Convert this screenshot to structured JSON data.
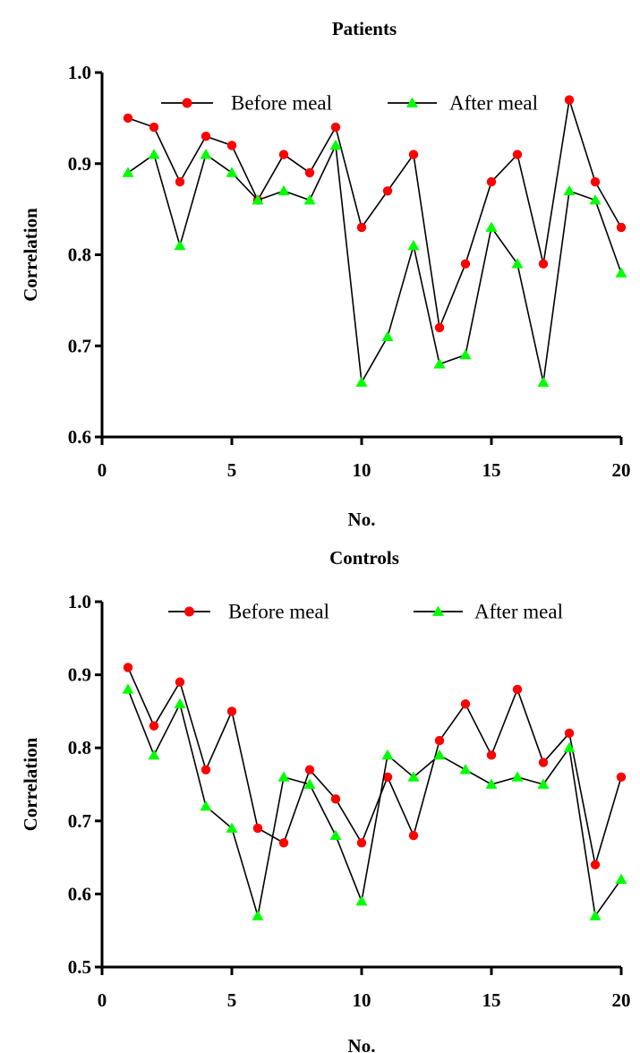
{
  "chart_data": [
    {
      "type": "line",
      "title": "Patients",
      "xlabel": "No.",
      "ylabel": "Correlation",
      "xlim": [
        0,
        20
      ],
      "ylim": [
        0.6,
        1.0
      ],
      "xticks": [
        0,
        5,
        10,
        15,
        20
      ],
      "yticks": [
        0.6,
        0.7,
        0.8,
        0.9,
        1.0
      ],
      "xtick_labels": [
        "0",
        "5",
        "10",
        "15",
        "20"
      ],
      "ytick_labels": [
        "0.6",
        "0.7",
        "0.8",
        "0.9",
        "1.0"
      ],
      "grid": false,
      "legend_position": "top",
      "x": [
        1,
        2,
        3,
        4,
        5,
        6,
        7,
        8,
        9,
        10,
        11,
        12,
        13,
        14,
        15,
        16,
        17,
        18,
        19,
        20
      ],
      "series": [
        {
          "name": "Before meal",
          "marker": "circle",
          "color": "#ff0000",
          "values": [
            0.95,
            0.94,
            0.88,
            0.93,
            0.92,
            0.86,
            0.91,
            0.89,
            0.94,
            0.83,
            0.87,
            0.91,
            0.72,
            0.79,
            0.88,
            0.91,
            0.79,
            0.97,
            0.88,
            0.83
          ]
        },
        {
          "name": "After meal",
          "marker": "triangle",
          "color": "#00ff00",
          "values": [
            0.89,
            0.91,
            0.81,
            0.91,
            0.89,
            0.86,
            0.87,
            0.86,
            0.92,
            0.66,
            0.71,
            0.81,
            0.68,
            0.69,
            0.83,
            0.79,
            0.66,
            0.87,
            0.86,
            0.78
          ]
        }
      ]
    },
    {
      "type": "line",
      "title": "Controls",
      "xlabel": "No.",
      "ylabel": "Correlation",
      "xlim": [
        0,
        20
      ],
      "ylim": [
        0.5,
        1.0
      ],
      "xticks": [
        0,
        5,
        10,
        15,
        20
      ],
      "yticks": [
        0.5,
        0.6,
        0.7,
        0.8,
        0.9,
        1.0
      ],
      "xtick_labels": [
        "0",
        "5",
        "10",
        "15",
        "20"
      ],
      "ytick_labels": [
        "0.5",
        "0.6",
        "0.7",
        "0.8",
        "0.9",
        "1.0"
      ],
      "grid": false,
      "legend_position": "top",
      "x": [
        1,
        2,
        3,
        4,
        5,
        6,
        7,
        8,
        9,
        10,
        11,
        12,
        13,
        14,
        15,
        16,
        17,
        18,
        19,
        20
      ],
      "series": [
        {
          "name": "Before meal",
          "marker": "circle",
          "color": "#ff0000",
          "values": [
            0.91,
            0.83,
            0.89,
            0.77,
            0.85,
            0.69,
            0.67,
            0.77,
            0.73,
            0.67,
            0.76,
            0.68,
            0.81,
            0.86,
            0.79,
            0.88,
            0.78,
            0.82,
            0.64,
            0.76
          ]
        },
        {
          "name": "After meal",
          "marker": "triangle",
          "color": "#00ff00",
          "values": [
            0.88,
            0.79,
            0.86,
            0.72,
            0.69,
            0.57,
            0.76,
            0.75,
            0.68,
            0.59,
            0.79,
            0.76,
            0.79,
            0.77,
            0.75,
            0.76,
            0.75,
            0.8,
            0.57,
            0.62
          ]
        }
      ]
    }
  ]
}
